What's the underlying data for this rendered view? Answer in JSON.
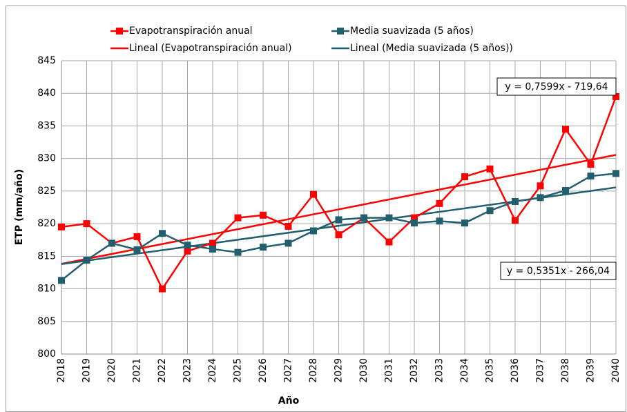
{
  "chart_data": {
    "type": "line",
    "x_label": "Año",
    "y_label": "ETP (mm/año)",
    "x": [
      2018,
      2019,
      2020,
      2021,
      2022,
      2023,
      2024,
      2025,
      2026,
      2027,
      2028,
      2029,
      2030,
      2031,
      2032,
      2033,
      2034,
      2035,
      2036,
      2037,
      2038,
      2039,
      2040
    ],
    "xlim": [
      2018,
      2040
    ],
    "xticks": [
      2018,
      2019,
      2020,
      2021,
      2022,
      2023,
      2024,
      2025,
      2026,
      2027,
      2028,
      2029,
      2030,
      2031,
      2032,
      2033,
      2034,
      2035,
      2036,
      2037,
      2038,
      2039,
      2040
    ],
    "ylim": [
      800,
      845
    ],
    "yticks": [
      800,
      805,
      810,
      815,
      820,
      825,
      830,
      835,
      840,
      845
    ],
    "grid": true,
    "series": [
      {
        "name": "Evapotranspiración anual",
        "color": "#ff0000",
        "values": [
          819.5,
          820.0,
          817.0,
          818.0,
          810.0,
          815.8,
          817.0,
          820.9,
          821.3,
          819.6,
          824.5,
          818.3,
          820.9,
          817.2,
          820.9,
          823.1,
          827.2,
          828.4,
          820.5,
          825.8,
          834.5,
          829.1,
          839.5
        ],
        "trendline": {
          "name": "Lineal (Evapotranspiración anual)",
          "slope": 0.7599,
          "intercept": -719.64,
          "label": "y = 0,7599x - 719,64"
        }
      },
      {
        "name": "Media suavizada (5 años)",
        "color": "#215f6e",
        "values": [
          811.3,
          814.4,
          817.0,
          816.0,
          818.5,
          816.7,
          816.1,
          815.6,
          816.4,
          817.0,
          818.9,
          820.6,
          820.9,
          820.9,
          820.1,
          820.4,
          820.1,
          822.0,
          823.4,
          824.0,
          825.1,
          827.3,
          827.7
        ],
        "trendline": {
          "name": "Lineal (Media suavizada (5 años))",
          "slope": 0.5351,
          "intercept": -266.04,
          "label": "y = 0,5351x - 266,04"
        }
      }
    ]
  }
}
